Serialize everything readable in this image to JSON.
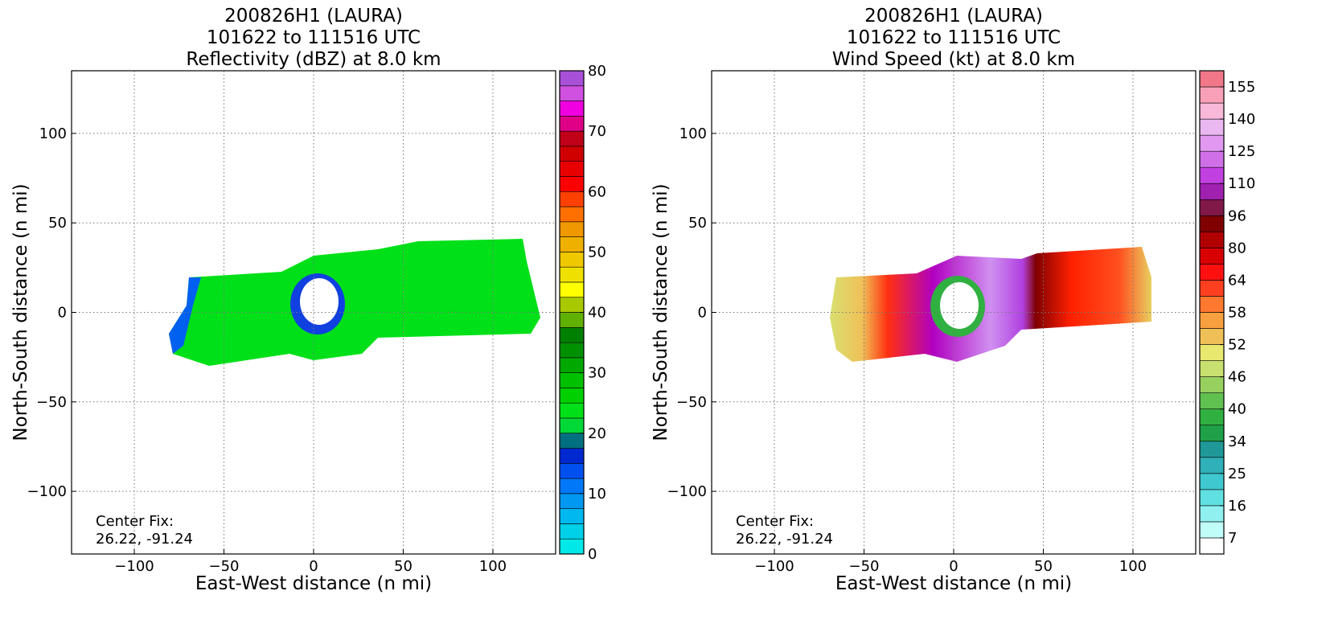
{
  "chart_data": [
    {
      "type": "heatmap",
      "title": [
        "200826H1 (LAURA)",
        "101622 to 111516 UTC",
        "Reflectivity (dBZ) at 8.0 km"
      ],
      "xlabel": "East-West distance (n mi)",
      "ylabel": "North-South distance (n mi)",
      "xlim": [
        -135,
        135
      ],
      "ylim": [
        -135,
        135
      ],
      "xticks": [
        {
          "value": -100,
          "label": "−100"
        },
        {
          "value": -50,
          "label": "−50"
        },
        0,
        50,
        100
      ],
      "yticks": [
        {
          "value": -100,
          "label": "−100"
        },
        {
          "value": -50,
          "label": "−50"
        },
        0,
        50,
        100
      ],
      "grid": true,
      "annotation": [
        "Center Fix:",
        "26.22, -91.24"
      ],
      "colorbar": {
        "levels": [
          0,
          2.5,
          5,
          7.5,
          10,
          12.5,
          15,
          17.5,
          20,
          22.5,
          25,
          27.5,
          30,
          32.5,
          35,
          37.5,
          40,
          42.5,
          45,
          47.5,
          50,
          52.5,
          55,
          57.5,
          60,
          62.5,
          65,
          67.5,
          70,
          72.5,
          75,
          77.5,
          80
        ],
        "colors": [
          "#00e8e8",
          "#00d0e8",
          "#00b8f0",
          "#0098f0",
          "#0078f8",
          "#0050f0",
          "#0028d0",
          "#007080",
          "#00d838",
          "#00e018",
          "#00d000",
          "#00c000",
          "#00a800",
          "#009000",
          "#008000",
          "#60b000",
          "#a8c800",
          "#ffff00",
          "#f0e000",
          "#f0c800",
          "#f0b000",
          "#f09800",
          "#ff7000",
          "#ff4000",
          "#ff0000",
          "#e80000",
          "#d00000",
          "#c00018",
          "#e00088",
          "#f000e0",
          "#d050e0",
          "#a850d8"
        ],
        "ticks": [
          0,
          10,
          20,
          30,
          40,
          50,
          60,
          70,
          80
        ]
      }
    },
    {
      "type": "heatmap",
      "title": [
        "200826H1 (LAURA)",
        "101622 to 111516 UTC",
        "Wind Speed (kt) at 8.0 km"
      ],
      "xlabel": "East-West distance (n mi)",
      "ylabel": "North-South distance (n mi)",
      "xlim": [
        -135,
        135
      ],
      "ylim": [
        -135,
        135
      ],
      "xticks": [
        {
          "value": -100,
          "label": "−100"
        },
        {
          "value": -50,
          "label": "−50"
        },
        0,
        50,
        100
      ],
      "yticks": [
        {
          "value": -100,
          "label": "−100"
        },
        {
          "value": -50,
          "label": "−50"
        },
        0,
        50,
        100
      ],
      "grid": true,
      "annotation": [
        "Center Fix:",
        "26.22, -91.24"
      ],
      "colorbar": {
        "levels": [
          0,
          7,
          11.5,
          16,
          20.5,
          25,
          29.5,
          34,
          37,
          40,
          43,
          46,
          49,
          52,
          55,
          58,
          61,
          64,
          72,
          80,
          88,
          96,
          103,
          110,
          117.5,
          125,
          132.5,
          140,
          147.5,
          155,
          165
        ],
        "colors": [
          "#ffffff",
          "#c0fcf8",
          "#90f0f0",
          "#60e0e0",
          "#40c8d0",
          "#30b0b8",
          "#209898",
          "#20a048",
          "#30b040",
          "#60c050",
          "#98d060",
          "#c8e070",
          "#e8e870",
          "#f0c058",
          "#f8a040",
          "#ff7830",
          "#ff4020",
          "#ff1010",
          "#d80000",
          "#b00000",
          "#800000",
          "#801848",
          "#a020b0",
          "#c040e0",
          "#d070e8",
          "#e098f0",
          "#eab8f0",
          "#f8b8d8",
          "#f8a0b8",
          "#f07888"
        ],
        "ticks": [
          7,
          16,
          25,
          34,
          40,
          46,
          52,
          58,
          64,
          80,
          96,
          110,
          125,
          140,
          155
        ]
      }
    }
  ]
}
